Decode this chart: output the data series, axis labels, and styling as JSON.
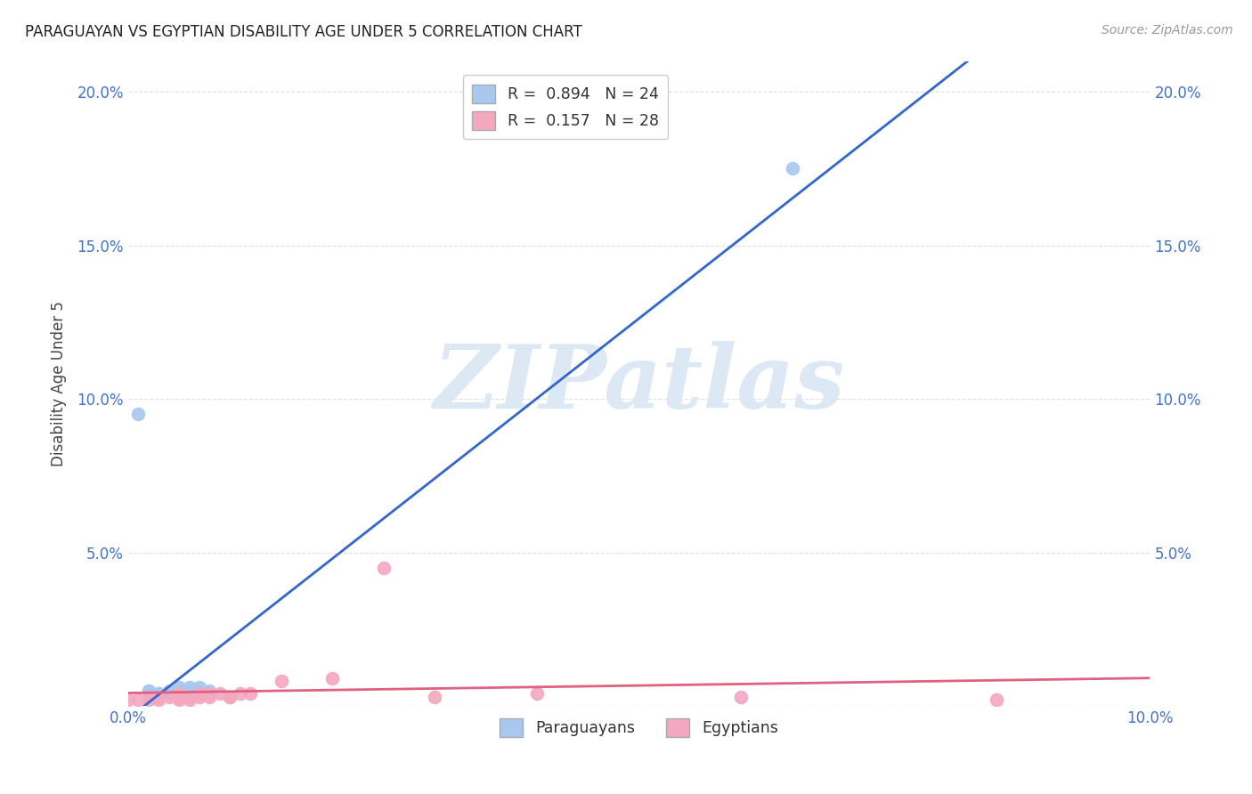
{
  "title": "PARAGUAYAN VS EGYPTIAN DISABILITY AGE UNDER 5 CORRELATION CHART",
  "source": "Source: ZipAtlas.com",
  "ylabel": "Disability Age Under 5",
  "xlabel": "",
  "xlim": [
    0.0,
    0.1
  ],
  "ylim": [
    0.0,
    0.21
  ],
  "xticks": [
    0.0,
    0.02,
    0.04,
    0.06,
    0.08,
    0.1
  ],
  "yticks": [
    0.0,
    0.05,
    0.1,
    0.15,
    0.2
  ],
  "ytick_labels_left": [
    "",
    "5.0%",
    "10.0%",
    "15.0%",
    "20.0%"
  ],
  "ytick_labels_right": [
    "",
    "5.0%",
    "10.0%",
    "15.0%",
    "20.0%"
  ],
  "xtick_labels": [
    "0.0%",
    "",
    "",
    "",
    "",
    "10.0%"
  ],
  "paraguayan_R": 0.894,
  "paraguayan_N": 24,
  "egyptian_R": 0.157,
  "egyptian_N": 28,
  "paraguayan_color": "#a8c8f0",
  "paraguayan_line_color": "#3366cc",
  "egyptian_color": "#f4a8c0",
  "egyptian_line_color": "#e06080",
  "watermark_text": "ZIPatlas",
  "watermark_color": "#dde8f5",
  "paraguayan_x": [
    0.001,
    0.002,
    0.002,
    0.003,
    0.003,
    0.004,
    0.004,
    0.004,
    0.005,
    0.005,
    0.005,
    0.005,
    0.006,
    0.006,
    0.006,
    0.006,
    0.006,
    0.007,
    0.007,
    0.007,
    0.007,
    0.008,
    0.008,
    0.065
  ],
  "paraguayan_y": [
    0.095,
    0.005,
    0.005,
    0.004,
    0.004,
    0.005,
    0.004,
    0.004,
    0.004,
    0.005,
    0.005,
    0.006,
    0.004,
    0.004,
    0.005,
    0.005,
    0.006,
    0.004,
    0.005,
    0.005,
    0.006,
    0.004,
    0.005,
    0.175
  ],
  "egyptian_x": [
    0.0,
    0.001,
    0.002,
    0.002,
    0.003,
    0.003,
    0.004,
    0.005,
    0.005,
    0.005,
    0.006,
    0.006,
    0.007,
    0.007,
    0.008,
    0.008,
    0.009,
    0.01,
    0.01,
    0.011,
    0.012,
    0.015,
    0.02,
    0.025,
    0.03,
    0.04,
    0.06,
    0.085
  ],
  "egyptian_y": [
    0.002,
    0.002,
    0.002,
    0.003,
    0.002,
    0.003,
    0.003,
    0.002,
    0.003,
    0.004,
    0.002,
    0.003,
    0.003,
    0.004,
    0.003,
    0.004,
    0.004,
    0.003,
    0.003,
    0.004,
    0.004,
    0.008,
    0.009,
    0.045,
    0.003,
    0.004,
    0.003,
    0.002
  ],
  "background_color": "#ffffff",
  "grid_color": "#dddddd",
  "title_color": "#222222",
  "axis_label_color": "#444444",
  "tick_color": "#4472c4",
  "legend_top_label1": "R =  0.894   N = 24",
  "legend_top_label2": "R =  0.157   N = 28",
  "legend_bottom_label1": "Paraguayans",
  "legend_bottom_label2": "Egyptians"
}
